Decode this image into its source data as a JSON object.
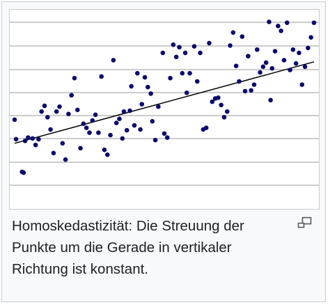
{
  "caption": "Homoskedastizität: Die Streuung der Punkte um die Gerade in vertikaler Richtung ist konstant.",
  "icons": {
    "enlarge": "magnify-clip-icon"
  },
  "colors": {
    "points": "#0a0a6e",
    "gridlines": "#9a9a9a",
    "regression_line": "#000000"
  },
  "chart_data": {
    "type": "scatter",
    "title": "",
    "xlabel": "",
    "ylabel": "",
    "xlim": [
      0,
      100
    ],
    "ylim": [
      0,
      10
    ],
    "grid": {
      "horizontal": true,
      "vertical": false
    },
    "legend": "none",
    "regression_line": {
      "x": [
        0,
        100
      ],
      "y": [
        3.0,
        8.0
      ]
    },
    "series": [
      {
        "name": "",
        "points": [
          [
            0,
            4.45
          ],
          [
            0.5,
            3.25
          ],
          [
            2.5,
            1.25
          ],
          [
            3,
            1.2
          ],
          [
            3.5,
            3.15
          ],
          [
            4.5,
            3.35
          ],
          [
            6,
            3.3
          ],
          [
            7,
            2.9
          ],
          [
            8,
            3.25
          ],
          [
            9,
            4.95
          ],
          [
            10,
            5.3
          ],
          [
            11,
            4.6
          ],
          [
            12,
            3.85
          ],
          [
            13,
            2.4
          ],
          [
            14,
            4.95
          ],
          [
            15,
            5.25
          ],
          [
            16,
            3.0
          ],
          [
            17,
            2.0
          ],
          [
            18,
            4.8
          ],
          [
            19,
            5.95
          ],
          [
            20,
            7.0
          ],
          [
            21,
            5.05
          ],
          [
            22,
            2.7
          ],
          [
            23,
            4.2
          ],
          [
            24,
            3.95
          ],
          [
            25,
            3.65
          ],
          [
            26,
            4.4
          ],
          [
            27,
            4.75
          ],
          [
            28,
            3.65
          ],
          [
            29,
            7.1
          ],
          [
            30,
            2.6
          ],
          [
            31,
            2.3
          ],
          [
            32,
            3.5
          ],
          [
            33,
            8.1
          ],
          [
            34,
            4.25
          ],
          [
            35,
            4.5
          ],
          [
            36,
            3.3
          ],
          [
            36.5,
            4.95
          ],
          [
            37.5,
            3.8
          ],
          [
            38.5,
            5.0
          ],
          [
            39,
            6.5
          ],
          [
            40,
            4.1
          ],
          [
            41,
            7.3
          ],
          [
            42,
            3.85
          ],
          [
            42.5,
            5.4
          ],
          [
            43.5,
            7.05
          ],
          [
            44.5,
            6.45
          ],
          [
            45.5,
            6.05
          ],
          [
            46,
            4.35
          ],
          [
            47,
            3.2
          ],
          [
            48,
            5.25
          ],
          [
            49.5,
            8.55
          ],
          [
            50,
            3.6
          ],
          [
            51,
            3.35
          ],
          [
            52,
            7.0
          ],
          [
            53,
            9.05
          ],
          [
            54,
            8.3
          ],
          [
            55,
            8.9
          ],
          [
            56,
            7.3
          ],
          [
            57,
            8.55
          ],
          [
            57.5,
            6.1
          ],
          [
            58.5,
            7.3
          ],
          [
            60,
            8.95
          ],
          [
            61,
            6.8
          ],
          [
            62,
            8.55
          ],
          [
            63,
            3.85
          ],
          [
            64,
            3.95
          ],
          [
            65,
            9.15
          ],
          [
            66,
            5.55
          ],
          [
            67,
            5.75
          ],
          [
            68,
            5.8
          ],
          [
            69,
            5.35
          ],
          [
            70,
            4.6
          ],
          [
            71,
            4.95
          ],
          [
            72,
            9.0
          ],
          [
            73,
            9.8
          ],
          [
            74,
            7.75
          ],
          [
            75,
            6.8
          ],
          [
            76,
            9.55
          ],
          [
            77,
            6.2
          ],
          [
            78,
            8.35
          ],
          [
            79,
            6.25
          ],
          [
            80,
            6.6
          ],
          [
            81,
            8.75
          ],
          [
            82,
            7.35
          ],
          [
            83,
            7.7
          ],
          [
            84,
            7.95
          ],
          [
            85,
            10.45
          ],
          [
            85.5,
            5.65
          ],
          [
            86,
            7.6
          ],
          [
            87,
            8.65
          ],
          [
            88,
            10.2
          ],
          [
            89,
            9.9
          ],
          [
            90,
            8.1
          ],
          [
            91,
            10.4
          ],
          [
            92,
            7.5
          ],
          [
            93,
            8.75
          ],
          [
            94,
            7.9
          ],
          [
            95,
            8.55
          ],
          [
            96,
            6.6
          ],
          [
            97,
            7.7
          ],
          [
            98,
            8.85
          ],
          [
            99,
            9.5
          ],
          [
            100,
            10.4
          ]
        ]
      }
    ]
  }
}
